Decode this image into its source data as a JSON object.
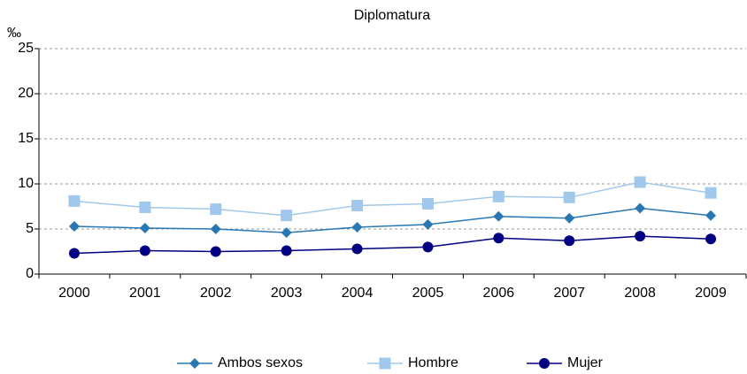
{
  "chart_data": {
    "type": "line",
    "title": "Diplomatura",
    "y_label": "‰",
    "categories": [
      "2000",
      "2001",
      "2002",
      "2003",
      "2004",
      "2005",
      "2006",
      "2007",
      "2008",
      "2009"
    ],
    "series": [
      {
        "name": "Ambos sexos",
        "color": "#2878b4",
        "marker": "diamond",
        "values": [
          5.3,
          5.1,
          5.0,
          4.6,
          5.2,
          5.5,
          6.4,
          6.2,
          7.3,
          6.5
        ]
      },
      {
        "name": "Hombre",
        "color": "#a0c8ec",
        "marker": "square",
        "values": [
          8.1,
          7.4,
          7.2,
          6.5,
          7.6,
          7.8,
          8.6,
          8.5,
          10.2,
          9.0
        ]
      },
      {
        "name": "Mujer",
        "color": "#000080",
        "marker": "circle",
        "values": [
          2.3,
          2.6,
          2.5,
          2.6,
          2.8,
          3.0,
          4.0,
          3.7,
          4.2,
          3.9
        ]
      }
    ],
    "ylim": [
      0,
      25
    ],
    "yticks": [
      0,
      5,
      10,
      15,
      20,
      25
    ],
    "grid": true,
    "legend": "bottom"
  }
}
